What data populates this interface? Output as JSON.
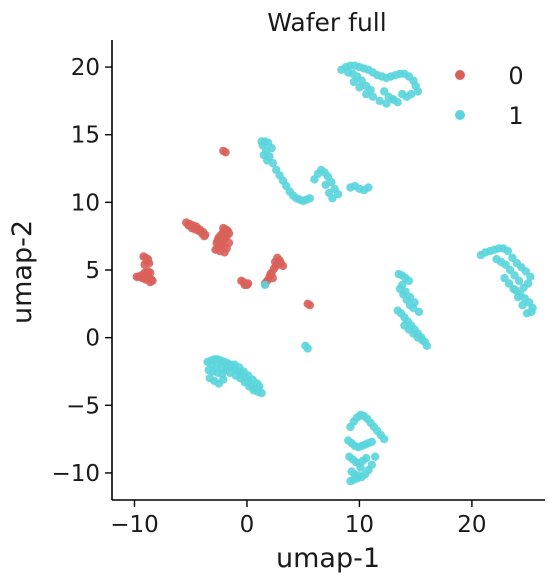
{
  "chart_data": {
    "type": "scatter",
    "title": "Wafer full",
    "xlabel": "umap-1",
    "ylabel": "umap-2",
    "xlim": [
      -12,
      26.5
    ],
    "ylim": [
      -12,
      22
    ],
    "xticks": [
      -10,
      0,
      10,
      20
    ],
    "yticks": [
      -10,
      -5,
      0,
      5,
      10,
      15,
      20
    ],
    "legend_position": "top-right",
    "series": [
      {
        "name": "0",
        "color": "#d9605a",
        "clusters": [
          {
            "x": [
              -9.8,
              -9.6,
              -9.4,
              -9.2,
              -9.0,
              -8.9,
              -9.1,
              -9.3,
              -8.8,
              -8.6,
              -8.7,
              -9.0,
              -8.5,
              -8.4,
              -8.6,
              -8.8
            ],
            "y": [
              4.5,
              4.5,
              4.6,
              4.5,
              4.5,
              4.7,
              4.8,
              4.4,
              4.9,
              4.8,
              4.4,
              4.3,
              4.3,
              4.2,
              4.1,
              4.6
            ]
          },
          {
            "x": [
              -9.2,
              -9.0,
              -8.8,
              -8.9,
              -9.1,
              -8.7
            ],
            "y": [
              6.0,
              5.9,
              5.8,
              5.6,
              5.4,
              5.5
            ]
          },
          {
            "x": [
              -5.4,
              -5.1,
              -4.8,
              -4.5,
              -4.2,
              -3.9,
              -3.7,
              -3.8,
              -5.2,
              -4.9,
              -4.6,
              -4.3,
              -4.0
            ],
            "y": [
              8.5,
              8.4,
              8.3,
              8.2,
              8.0,
              7.8,
              7.6,
              7.5,
              8.3,
              8.1,
              8.0,
              7.9,
              7.7
            ]
          },
          {
            "x": [
              -2.8,
              -2.6,
              -2.4,
              -2.2,
              -2.0,
              -1.8,
              -1.6,
              -2.5,
              -2.3,
              -2.1,
              -1.9,
              -1.7,
              -2.6,
              -2.2,
              -1.8,
              -2.4,
              -2.0,
              -1.6,
              -2.7,
              -2.3,
              -1.9,
              -2.1
            ],
            "y": [
              6.5,
              6.7,
              6.9,
              7.1,
              7.3,
              7.5,
              7.7,
              7.4,
              7.6,
              7.8,
              8.0,
              7.9,
              7.2,
              6.8,
              6.6,
              6.4,
              6.3,
              7.0,
              7.0,
              7.2,
              7.6,
              8.1
            ]
          },
          {
            "x": [
              -0.5,
              -0.3,
              -0.2,
              0.0,
              0.1
            ],
            "y": [
              4.2,
              4.1,
              3.9,
              3.9,
              4.0
            ]
          },
          {
            "x": [
              -2.1,
              -1.9
            ],
            "y": [
              13.8,
              13.7
            ]
          },
          {
            "x": [
              1.6,
              1.8,
              2.0,
              2.2,
              2.4,
              2.6,
              2.8,
              3.0,
              3.2,
              2.5,
              2.7,
              2.9,
              2.3,
              2.1
            ],
            "y": [
              4.0,
              4.2,
              4.5,
              4.8,
              5.1,
              5.3,
              5.5,
              5.5,
              5.3,
              5.6,
              5.9,
              5.7,
              4.4,
              4.7
            ]
          },
          {
            "x": [
              5.4,
              5.6
            ],
            "y": [
              2.5,
              2.4
            ]
          }
        ]
      },
      {
        "name": "1",
        "color": "#5ad5dc",
        "clusters": [
          {
            "x": [
              8.4,
              8.8,
              9.2,
              9.6,
              10.0,
              10.4,
              10.8,
              11.2,
              11.6,
              12.0,
              12.4,
              12.8,
              13.2,
              13.6,
              14.0,
              14.4,
              14.8,
              15.0,
              15.2,
              14.6,
              9.0,
              9.4,
              9.8,
              10.2,
              10.6,
              11.0,
              12.2,
              12.6,
              13.0,
              13.4,
              9.5,
              10.0,
              10.6,
              11.2,
              11.8,
              12.4,
              13.0,
              13.8,
              14.2
            ],
            "y": [
              19.8,
              20.0,
              20.1,
              20.1,
              20.0,
              19.9,
              19.8,
              19.6,
              19.4,
              19.3,
              19.2,
              19.3,
              19.4,
              19.5,
              19.5,
              19.3,
              19.0,
              18.6,
              18.2,
              18.0,
              19.6,
              19.5,
              19.3,
              19.0,
              18.6,
              18.3,
              18.2,
              17.8,
              17.6,
              17.4,
              18.9,
              18.5,
              18.0,
              17.8,
              17.5,
              17.3,
              17.6,
              18.0,
              17.8
            ]
          },
          {
            "x": [
              1.3,
              1.6,
              1.9,
              2.2,
              1.5,
              1.8,
              1.4,
              1.7,
              2.0,
              2.3,
              2.6,
              2.9,
              3.2,
              3.5,
              3.8,
              4.1,
              4.4,
              4.7,
              5.0,
              5.3,
              5.6
            ],
            "y": [
              14.5,
              14.5,
              14.4,
              14.0,
              13.5,
              13.1,
              14.2,
              13.8,
              13.4,
              12.9,
              12.4,
              12.0,
              11.6,
              11.2,
              10.8,
              10.5,
              10.3,
              10.2,
              10.1,
              10.2,
              10.3
            ]
          },
          {
            "x": [
              6.0,
              6.3,
              6.6,
              6.9,
              7.2,
              7.5,
              7.8,
              8.1,
              7.6,
              7.3,
              7.0
            ],
            "y": [
              11.7,
              12.1,
              12.4,
              12.2,
              11.9,
              11.5,
              11.0,
              10.6,
              10.3,
              10.7,
              11.3
            ]
          },
          {
            "x": [
              9.2,
              9.6,
              10.0,
              10.4,
              10.8
            ],
            "y": [
              11.1,
              11.2,
              11.0,
              10.9,
              11.1
            ]
          },
          {
            "x": [
              1.6
            ],
            "y": [
              3.9
            ]
          },
          {
            "x": [
              5.2,
              5.4
            ],
            "y": [
              -0.6,
              -0.8
            ]
          },
          {
            "x": [
              -3.5,
              -3.2,
              -2.9,
              -2.6,
              -2.3,
              -2.0,
              -1.7,
              -1.4,
              -1.1,
              -0.8,
              -0.5,
              -0.2,
              0.1,
              0.4,
              0.7,
              1.0,
              1.3,
              -3.4,
              -3.0,
              -2.6,
              -2.2,
              -1.8,
              -1.4,
              -1.0,
              -0.6,
              -0.2,
              0.2,
              0.6,
              1.0,
              -3.3,
              -2.9,
              -2.5,
              -2.1,
              -3.1,
              -2.7,
              -2.3,
              -1.9,
              -1.5,
              -1.1,
              -0.7,
              -0.3,
              0.1,
              0.5,
              0.9,
              1.1
            ],
            "y": [
              -1.8,
              -1.7,
              -1.6,
              -1.6,
              -1.7,
              -1.8,
              -1.9,
              -2.1,
              -2.3,
              -2.5,
              -2.7,
              -2.9,
              -3.2,
              -3.5,
              -3.8,
              -4.0,
              -4.1,
              -2.4,
              -2.5,
              -2.6,
              -2.7,
              -2.3,
              -2.0,
              -2.8,
              -3.0,
              -3.3,
              -3.6,
              -3.9,
              -3.7,
              -3.0,
              -3.2,
              -3.4,
              -3.1,
              -2.0,
              -2.1,
              -2.2,
              -2.4,
              -2.6,
              -2.0,
              -2.2,
              -2.5,
              -2.8,
              -3.1,
              -3.4,
              -3.6
            ]
          },
          {
            "x": [
              13.5,
              13.8,
              14.1,
              14.4,
              13.6,
              13.9,
              14.2,
              14.5,
              14.8,
              13.4,
              13.7,
              14.0,
              14.3,
              14.6,
              14.9,
              15.2,
              15.5,
              15.8,
              14.0,
              14.4,
              14.8,
              15.2,
              15.6,
              16.0,
              13.8,
              14.1,
              14.5,
              14.9,
              15.3
            ],
            "y": [
              4.7,
              4.6,
              4.4,
              4.2,
              3.6,
              3.2,
              2.8,
              2.4,
              2.2,
              2.0,
              1.8,
              1.5,
              1.2,
              0.9,
              0.6,
              0.3,
              0.0,
              -0.3,
              0.9,
              0.6,
              0.3,
              0.0,
              -0.2,
              -0.6,
              3.9,
              3.4,
              3.0,
              2.6,
              1.9
            ]
          },
          {
            "x": [
              20.8,
              21.2,
              21.6,
              22.0,
              22.4,
              22.8,
              23.2,
              23.6,
              24.0,
              24.4,
              24.8,
              25.2,
              25.0,
              24.6,
              24.2,
              23.8,
              23.4,
              23.0,
              22.6,
              22.2,
              23.9,
              24.3,
              24.7,
              25.1,
              25.4,
              24.9,
              25.3,
              24.5,
              22.9,
              23.3,
              23.7,
              24.1
            ],
            "y": [
              6.1,
              6.3,
              6.4,
              6.5,
              6.6,
              6.6,
              6.4,
              5.9,
              5.5,
              5.2,
              4.9,
              4.5,
              4.0,
              3.7,
              4.2,
              4.6,
              5.0,
              5.4,
              5.6,
              5.8,
              3.5,
              3.2,
              2.9,
              2.6,
              2.2,
              1.8,
              1.9,
              2.4,
              4.4,
              4.0,
              3.6,
              3.0
            ]
          },
          {
            "x": [
              9.2,
              9.5,
              9.8,
              10.1,
              10.4,
              10.7,
              11.0,
              11.3,
              11.6,
              11.9,
              12.2,
              9.0,
              9.3,
              9.6,
              9.9,
              10.2,
              10.5,
              10.8,
              11.1,
              9.1,
              9.4,
              9.7,
              10.0,
              10.3,
              10.6,
              9.3,
              9.6,
              9.9,
              10.2,
              10.5,
              10.8,
              11.1,
              11.4,
              9.2,
              9.5,
              9.8,
              10.1
            ],
            "y": [
              -6.6,
              -6.2,
              -5.9,
              -5.7,
              -5.8,
              -6.0,
              -6.3,
              -6.6,
              -6.9,
              -7.2,
              -7.5,
              -7.6,
              -7.8,
              -8.0,
              -8.1,
              -8.0,
              -7.9,
              -7.8,
              -7.7,
              -8.8,
              -9.0,
              -9.2,
              -9.3,
              -9.1,
              -8.9,
              -9.9,
              -10.1,
              -10.2,
              -10.3,
              -10.1,
              -9.8,
              -9.4,
              -8.8,
              -10.6,
              -10.5,
              -10.4,
              -9.6
            ]
          }
        ]
      }
    ]
  }
}
